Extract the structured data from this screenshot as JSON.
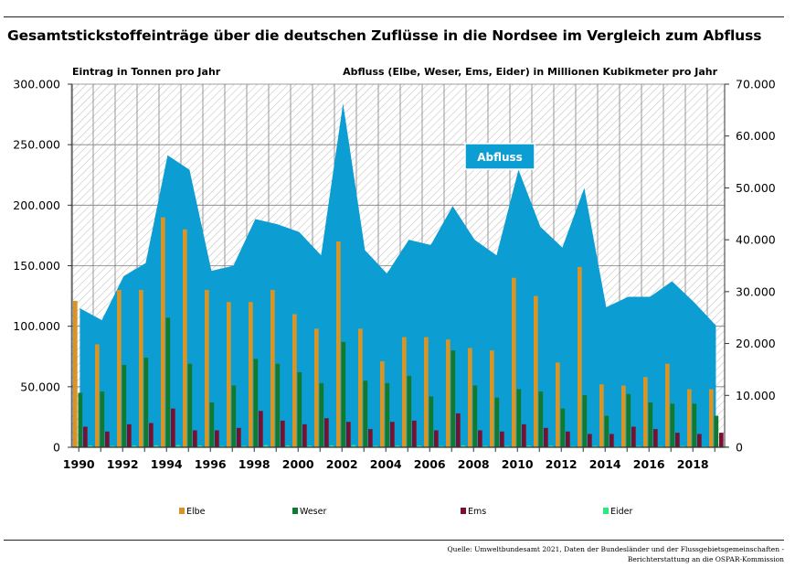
{
  "header": {
    "title": "Gesamtstickstoffeinträge über die deutschen Zuflüsse in die Nordsee im Vergleich zum Abfluss"
  },
  "footer": {
    "source_line1": "Quelle: Umweltbundesamt 2021, Daten der Bundesländer und der Flussgebietsgemeinschaften -",
    "source_line2": "Berichterstattung an die OSPAR-Kommission"
  },
  "chart_data": {
    "type": "bar",
    "left_axis_label": "Eintrag in Tonnen pro Jahr",
    "right_axis_label": "Abfluss (Elbe, Weser, Ems, Eider) in Millionen Kubikmeter pro Jahr",
    "area_label": "Abfluss",
    "years": [
      1990,
      1991,
      1992,
      1993,
      1994,
      1995,
      1996,
      1997,
      1998,
      1999,
      2000,
      2001,
      2002,
      2003,
      2004,
      2005,
      2006,
      2007,
      2008,
      2009,
      2010,
      2011,
      2012,
      2013,
      2014,
      2015,
      2016,
      2017,
      2018,
      2019
    ],
    "x_tick_labels": [
      "1990",
      "1992",
      "1994",
      "1996",
      "1998",
      "2000",
      "2002",
      "2004",
      "2006",
      "2008",
      "2010",
      "2012",
      "2014",
      "2016",
      "2018"
    ],
    "left_ticks": [
      "0",
      "50.000",
      "100.000",
      "150.000",
      "200.000",
      "250.000",
      "300.000"
    ],
    "right_ticks": [
      "0",
      "10.000",
      "20.000",
      "30.000",
      "40.000",
      "50.000",
      "60.000",
      "70.000"
    ],
    "ylim_left": [
      0,
      300000
    ],
    "ylim_right": [
      0,
      70000
    ],
    "series": [
      {
        "name": "Elbe",
        "color": "#d89426",
        "values": [
          121000,
          85000,
          130000,
          130000,
          190000,
          180000,
          130000,
          120000,
          120000,
          130000,
          110000,
          98000,
          170000,
          98000,
          71000,
          91000,
          91000,
          89000,
          82000,
          80000,
          140000,
          125000,
          70000,
          149000,
          52000,
          51000,
          58000,
          69000,
          48000,
          48000
        ]
      },
      {
        "name": "Weser",
        "color": "#0e7a32",
        "values": [
          45000,
          46000,
          68000,
          74000,
          107000,
          69000,
          37000,
          51000,
          73000,
          69000,
          62000,
          53000,
          87000,
          55000,
          53000,
          59000,
          42000,
          80000,
          51000,
          41000,
          48000,
          46000,
          32000,
          43000,
          26000,
          44000,
          37000,
          36000,
          36000,
          26000
        ]
      },
      {
        "name": "Ems",
        "color": "#7a1030",
        "values": [
          17000,
          13000,
          19000,
          20000,
          32000,
          14000,
          14000,
          16000,
          30000,
          22000,
          19000,
          24000,
          21000,
          15000,
          21000,
          22000,
          14000,
          28000,
          14000,
          13000,
          19000,
          16000,
          13000,
          11000,
          11000,
          17000,
          15000,
          12000,
          11000,
          12000
        ]
      },
      {
        "name": "Eider",
        "color": "#2ee87c",
        "values": [
          1500,
          1200,
          1500,
          1600,
          1800,
          1500,
          1100,
          1200,
          1800,
          1500,
          1400,
          1600,
          1900,
          1200,
          1300,
          1400,
          1100,
          1600,
          1200,
          1100,
          1400,
          1300,
          1000,
          1200,
          900,
          1100,
          1000,
          1100,
          900,
          900
        ]
      },
      {
        "name": "Abfluss",
        "type": "area",
        "color": "#0c9ed2",
        "values": [
          26800,
          24500,
          33000,
          35500,
          56300,
          53500,
          34000,
          35000,
          44000,
          43000,
          41500,
          37000,
          66300,
          38000,
          33500,
          40000,
          39000,
          46500,
          40000,
          37000,
          53500,
          42500,
          38500,
          50000,
          27000,
          29000,
          29000,
          32000,
          28000,
          23500
        ]
      }
    ],
    "legend": [
      "Elbe",
      "Weser",
      "Ems",
      "Eider"
    ],
    "legend_position": "bottom",
    "grid": true
  }
}
